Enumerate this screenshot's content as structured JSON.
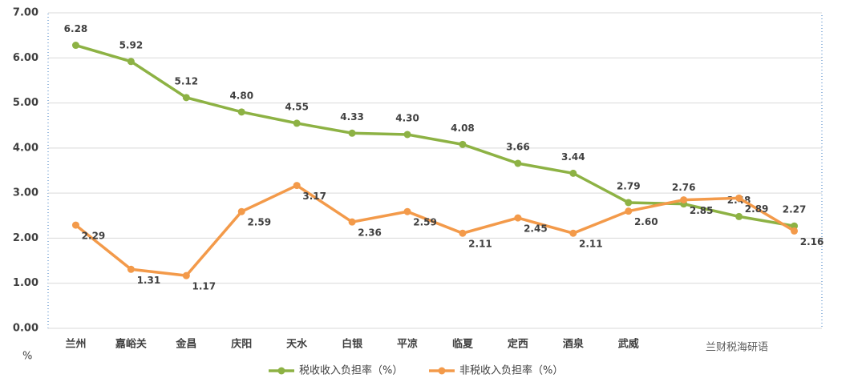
{
  "chart_data": {
    "type": "line",
    "categories": [
      "兰州",
      "嘉峪关",
      "金昌",
      "庆阳",
      "天水",
      "白银",
      "平凉",
      "临夏",
      "定西",
      "酒泉",
      "武威",
      null,
      null,
      null
    ],
    "series": [
      {
        "name": "税收收入负担率（%）",
        "color": "#8db244",
        "values": [
          6.28,
          5.92,
          5.12,
          4.8,
          4.55,
          4.33,
          4.3,
          4.08,
          3.66,
          3.44,
          2.79,
          2.76,
          2.48,
          2.27
        ],
        "value_labels": [
          "6.28",
          "5.92",
          "5.12",
          "4.80",
          "4.55",
          "4.33",
          "4.30",
          "4.08",
          "3.66",
          "3.44",
          "2.79",
          "2.76",
          "2.48",
          "2.27"
        ],
        "label_color": "#ff0000"
      },
      {
        "name": "非税收入负担率（%）",
        "color": "#f39a4a",
        "values": [
          2.29,
          1.31,
          1.17,
          2.59,
          3.17,
          2.36,
          2.59,
          2.11,
          2.45,
          2.11,
          2.6,
          2.85,
          2.89,
          2.16
        ],
        "value_labels": [
          "2.29",
          "1.31",
          "1.17",
          "2.59",
          "3.17",
          "2.36",
          "2.59",
          "2.11",
          "2.45",
          "2.11",
          "2.60",
          "2.85",
          "2.89",
          "2.16"
        ],
        "label_color": "#404040"
      }
    ],
    "y_unit": "%",
    "watermark": "兰财税海研语",
    "ylim": [
      0,
      7
    ],
    "yticks": [
      {
        "value": 0,
        "label": "0.00"
      },
      {
        "value": 1,
        "label": "1.00"
      },
      {
        "value": 2,
        "label": "2.00"
      },
      {
        "value": 3,
        "label": "3.00"
      },
      {
        "value": 4,
        "label": "4.00"
      },
      {
        "value": 5,
        "label": "5.00"
      },
      {
        "value": 6,
        "label": "6.00"
      },
      {
        "value": 7,
        "label": "7.00"
      }
    ],
    "grid": true
  }
}
